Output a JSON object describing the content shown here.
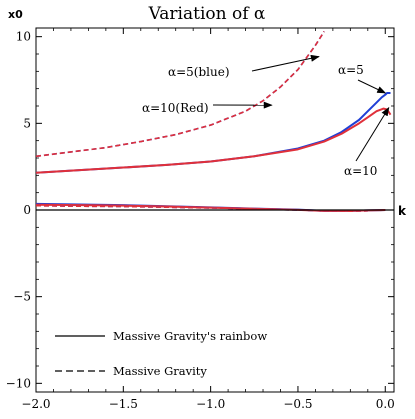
{
  "chart_data": {
    "type": "line",
    "title": "Variation of α",
    "xlabel": "k",
    "ylabel": "x0",
    "xlim": [
      -2.0,
      0.05
    ],
    "ylim": [
      -10.5,
      10.5
    ],
    "x_ticks": [
      -2.0,
      -1.5,
      -1.0,
      -0.5,
      0.0
    ],
    "x_tick_labels": [
      "−2.0",
      "−1.5",
      "−1.0",
      "−0.5",
      "0.0"
    ],
    "y_ticks": [
      -10,
      -5,
      0,
      5,
      10
    ],
    "y_tick_labels": [
      "−10",
      "−5",
      "0",
      "5",
      "10"
    ],
    "grid": false,
    "legend": {
      "position": "bottom-left",
      "entries": [
        {
          "label": "Massive Gravity's rainbow",
          "style": "solid"
        },
        {
          "label": "Massive Gravity",
          "style": "dashed"
        }
      ]
    },
    "annotations": [
      {
        "text": "α=5(blue)",
        "arrow_to": [
          -0.38,
          8.85
        ]
      },
      {
        "text": "α=10(Red)",
        "arrow_to": [
          -0.65,
          6.05
        ]
      },
      {
        "text": "α=5",
        "arrow_to": [
          0.0,
          6.75
        ]
      },
      {
        "text": "α=10",
        "arrow_to": [
          0.02,
          5.9
        ]
      }
    ],
    "series": [
      {
        "label": "α=5",
        "model": "Massive Gravity",
        "style": "dashed",
        "color": "#1f3fd6",
        "x": [
          -2.0,
          -1.8,
          -1.6,
          -1.4,
          -1.2,
          -1.0,
          -0.8,
          -0.7,
          -0.6,
          -0.5,
          -0.45,
          -0.4,
          -0.35
        ],
        "y": [
          3.1,
          3.35,
          3.6,
          3.95,
          4.35,
          4.9,
          5.7,
          6.3,
          7.1,
          8.1,
          8.8,
          9.5,
          10.3
        ]
      },
      {
        "label": "α=10",
        "model": "Massive Gravity",
        "style": "dashed",
        "color": "#e0303a",
        "x": [
          -2.0,
          -1.8,
          -1.6,
          -1.4,
          -1.2,
          -1.0,
          -0.8,
          -0.7,
          -0.6,
          -0.5,
          -0.45,
          -0.4,
          -0.35
        ],
        "y": [
          3.1,
          3.35,
          3.6,
          3.95,
          4.35,
          4.9,
          5.7,
          6.3,
          7.1,
          8.1,
          8.8,
          9.5,
          10.3
        ]
      },
      {
        "label": "α=5",
        "model": "Massive Gravity's rainbow",
        "style": "solid",
        "color": "#1f3fd6",
        "x": [
          -2.0,
          -1.75,
          -1.5,
          -1.25,
          -1.0,
          -0.75,
          -0.5,
          -0.35,
          -0.25,
          -0.15,
          -0.1,
          -0.05,
          -0.02,
          0.0,
          0.01,
          0.03
        ],
        "y": [
          2.15,
          2.3,
          2.45,
          2.6,
          2.8,
          3.1,
          3.55,
          4.0,
          4.5,
          5.2,
          5.7,
          6.2,
          6.5,
          6.65,
          6.75,
          6.75
        ]
      },
      {
        "label": "α=10",
        "model": "Massive Gravity's rainbow",
        "style": "solid",
        "color": "#e0303a",
        "x": [
          -2.0,
          -1.75,
          -1.5,
          -1.25,
          -1.0,
          -0.75,
          -0.5,
          -0.35,
          -0.25,
          -0.15,
          -0.1,
          -0.05,
          -0.01,
          0.01,
          0.03
        ],
        "y": [
          2.15,
          2.3,
          2.45,
          2.6,
          2.8,
          3.1,
          3.5,
          3.95,
          4.4,
          5.0,
          5.35,
          5.7,
          5.85,
          5.8,
          5.5
        ]
      },
      {
        "label": "α=5",
        "model": "Massive Gravity's rainbow",
        "style": "solid",
        "color": "#1f3fd6",
        "x": [
          -2.0,
          -1.75,
          -1.5,
          -1.25,
          -1.0,
          -0.75,
          -0.5,
          -0.35,
          -0.2,
          -0.1,
          0.0
        ],
        "y": [
          0.35,
          0.32,
          0.28,
          0.22,
          0.15,
          0.08,
          0.02,
          -0.05,
          -0.05,
          -0.02,
          0.0
        ]
      },
      {
        "label": "α=10",
        "model": "Massive Gravity's rainbow",
        "style": "solid",
        "color": "#e0303a",
        "x": [
          -2.0,
          -1.75,
          -1.5,
          -1.25,
          -1.0,
          -0.75,
          -0.5,
          -0.35,
          -0.2,
          -0.1,
          0.0
        ],
        "y": [
          0.3,
          0.28,
          0.25,
          0.2,
          0.14,
          0.07,
          0.01,
          -0.05,
          -0.05,
          -0.02,
          0.0
        ]
      },
      {
        "label": "α=5",
        "model": "Massive Gravity",
        "style": "dashed",
        "color": "#1f3fd6",
        "x": [
          -2.0,
          -1.75,
          -1.5,
          -1.25,
          -1.0,
          -0.75,
          -0.5,
          -0.35,
          -0.2,
          -0.1
        ],
        "y": [
          0.25,
          0.22,
          0.2,
          0.16,
          0.12,
          0.06,
          0.0,
          -0.05,
          -0.07,
          -0.05
        ]
      },
      {
        "label": "α=10",
        "model": "Massive Gravity",
        "style": "dashed",
        "color": "#e0303a",
        "x": [
          -2.0,
          -1.75,
          -1.5,
          -1.25,
          -1.0,
          -0.75,
          -0.5,
          -0.35,
          -0.2,
          -0.1
        ],
        "y": [
          0.25,
          0.22,
          0.2,
          0.16,
          0.12,
          0.06,
          0.0,
          -0.05,
          -0.07,
          -0.05
        ]
      }
    ]
  }
}
